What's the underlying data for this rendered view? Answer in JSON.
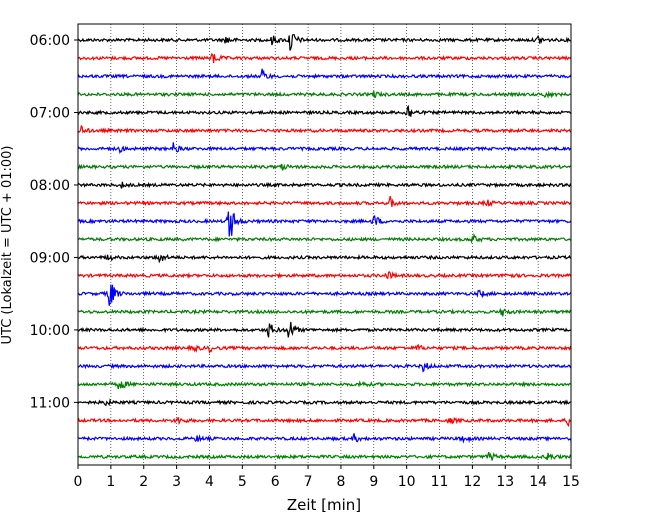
{
  "chart_data": {
    "type": "line",
    "title": "",
    "xlabel": "Zeit  [min]",
    "ylabel": "UTC (Lokalzeit = UTC + 01:00)",
    "xlim": [
      0,
      15
    ],
    "x_ticks": [
      "0",
      "1",
      "2",
      "3",
      "4",
      "5",
      "6",
      "7",
      "8",
      "9",
      "10",
      "11",
      "12",
      "13",
      "14",
      "15"
    ],
    "y_tick_labels": [
      "06:00",
      "07:00",
      "08:00",
      "09:00",
      "10:00",
      "11:00"
    ],
    "grid": "vertical dotted",
    "line_colors": [
      "#000000",
      "#ff0000",
      "#0000ff",
      "#008000"
    ],
    "traces": [
      {
        "start": "06:00",
        "color": "#000000",
        "events": [
          {
            "t": 4.5,
            "amp": 0.3
          },
          {
            "t": 5.9,
            "amp": 0.3
          },
          {
            "t": 6.45,
            "amp": 0.9
          },
          {
            "t": 14.0,
            "amp": 0.3
          }
        ]
      },
      {
        "start": "06:15",
        "color": "#ff0000",
        "events": [
          {
            "t": 4.1,
            "amp": 0.45
          }
        ]
      },
      {
        "start": "06:30",
        "color": "#0000ff",
        "events": [
          {
            "t": 5.6,
            "amp": 0.4
          }
        ]
      },
      {
        "start": "06:45",
        "color": "#008000",
        "events": [
          {
            "t": 9.0,
            "amp": 0.2
          },
          {
            "t": 14.2,
            "amp": 0.2
          }
        ]
      },
      {
        "start": "07:00",
        "color": "#000000",
        "events": [
          {
            "t": 10.0,
            "amp": 0.7
          }
        ]
      },
      {
        "start": "07:15",
        "color": "#ff0000",
        "events": [
          {
            "t": 0.05,
            "amp": 0.4
          }
        ]
      },
      {
        "start": "07:30",
        "color": "#0000ff",
        "events": [
          {
            "t": 1.25,
            "amp": 0.2
          },
          {
            "t": 2.9,
            "amp": 0.35
          }
        ]
      },
      {
        "start": "07:45",
        "color": "#008000",
        "events": [
          {
            "t": 6.2,
            "amp": 0.2
          }
        ]
      },
      {
        "start": "08:00",
        "color": "#000000",
        "events": [
          {
            "t": 1.3,
            "amp": 0.2
          }
        ]
      },
      {
        "start": "08:15",
        "color": "#ff0000",
        "events": [
          {
            "t": 9.5,
            "amp": 0.35
          },
          {
            "t": 12.4,
            "amp": 0.25
          }
        ]
      },
      {
        "start": "08:30",
        "color": "#0000ff",
        "events": [
          {
            "t": 4.6,
            "amp": 1.6
          },
          {
            "t": 9.0,
            "amp": 0.45
          }
        ]
      },
      {
        "start": "08:45",
        "color": "#008000",
        "events": [
          {
            "t": 12.0,
            "amp": 0.3
          }
        ]
      },
      {
        "start": "09:00",
        "color": "#000000",
        "events": [
          {
            "t": 0.9,
            "amp": 0.2
          },
          {
            "t": 2.45,
            "amp": 0.45
          }
        ]
      },
      {
        "start": "09:15",
        "color": "#ff0000",
        "events": [
          {
            "t": 9.4,
            "amp": 0.3
          },
          {
            "t": 13.0,
            "amp": 0.25
          }
        ]
      },
      {
        "start": "09:30",
        "color": "#0000ff",
        "events": [
          {
            "t": 0.95,
            "amp": 1.2
          },
          {
            "t": 12.2,
            "amp": 0.25
          }
        ]
      },
      {
        "start": "09:45",
        "color": "#008000",
        "events": [
          {
            "t": 12.9,
            "amp": 0.3
          }
        ]
      },
      {
        "start": "10:00",
        "color": "#000000",
        "events": [
          {
            "t": 5.8,
            "amp": 0.55
          },
          {
            "t": 6.4,
            "amp": 0.85
          }
        ]
      },
      {
        "start": "10:15",
        "color": "#ff0000",
        "events": [
          {
            "t": 3.5,
            "amp": 0.2
          },
          {
            "t": 4.0,
            "amp": 0.2
          },
          {
            "t": 10.3,
            "amp": 0.2
          }
        ]
      },
      {
        "start": "10:30",
        "color": "#0000ff",
        "events": [
          {
            "t": 10.5,
            "amp": 0.35
          }
        ]
      },
      {
        "start": "10:45",
        "color": "#008000",
        "events": [
          {
            "t": 1.25,
            "amp": 0.5
          },
          {
            "t": 8.6,
            "amp": 0.2
          }
        ]
      },
      {
        "start": "11:00",
        "color": "#000000",
        "events": [
          {
            "t": 0.8,
            "amp": 0.2
          }
        ]
      },
      {
        "start": "11:15",
        "color": "#ff0000",
        "events": [
          {
            "t": 3.0,
            "amp": 0.3
          },
          {
            "t": 11.3,
            "amp": 0.2
          },
          {
            "t": 14.9,
            "amp": 0.3
          }
        ]
      },
      {
        "start": "11:30",
        "color": "#0000ff",
        "events": [
          {
            "t": 3.6,
            "amp": 0.2
          },
          {
            "t": 8.4,
            "amp": 0.25
          },
          {
            "t": 11.7,
            "amp": 0.25
          }
        ]
      },
      {
        "start": "11:45",
        "color": "#008000",
        "events": [
          {
            "t": 12.5,
            "amp": 0.35
          },
          {
            "t": 14.3,
            "amp": 0.3
          }
        ]
      }
    ]
  }
}
